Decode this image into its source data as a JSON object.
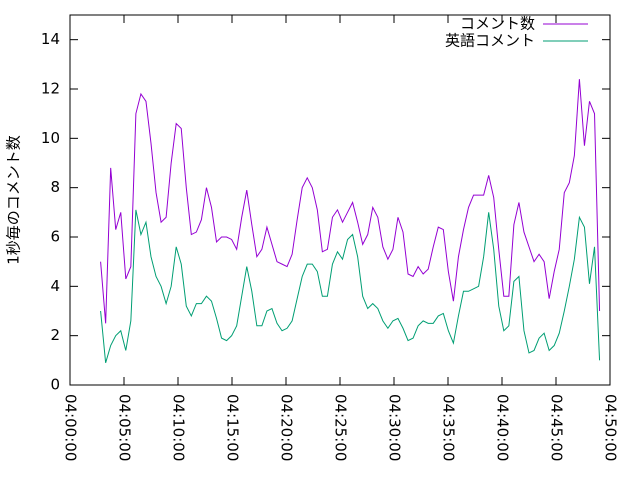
{
  "chart_data": {
    "type": "line",
    "ylabel": "1秒毎のコメント数",
    "x": [
      "04:02:50",
      "04:03:18",
      "04:03:46",
      "04:04:14",
      "04:04:42",
      "04:05:10",
      "04:05:38",
      "04:06:06",
      "04:06:34",
      "04:07:02",
      "04:07:30",
      "04:07:58",
      "04:08:26",
      "04:08:54",
      "04:09:22",
      "04:09:50",
      "04:10:18",
      "04:10:46",
      "04:11:14",
      "04:11:42",
      "04:12:10",
      "04:12:38",
      "04:13:06",
      "04:13:34",
      "04:14:02",
      "04:14:30",
      "04:14:58",
      "04:15:26",
      "04:15:54",
      "04:16:22",
      "04:16:50",
      "04:17:18",
      "04:17:46",
      "04:18:14",
      "04:18:42",
      "04:19:10",
      "04:19:38",
      "04:20:06",
      "04:20:34",
      "04:21:02",
      "04:21:30",
      "04:21:58",
      "04:22:26",
      "04:22:54",
      "04:23:22",
      "04:23:50",
      "04:24:18",
      "04:24:46",
      "04:25:14",
      "04:25:42",
      "04:26:10",
      "04:26:38",
      "04:27:06",
      "04:27:34",
      "04:28:02",
      "04:28:30",
      "04:28:58",
      "04:29:26",
      "04:29:54",
      "04:30:22",
      "04:30:50",
      "04:31:18",
      "04:31:46",
      "04:32:14",
      "04:32:42",
      "04:33:10",
      "04:33:38",
      "04:34:06",
      "04:34:34",
      "04:35:02",
      "04:35:30",
      "04:35:58",
      "04:36:26",
      "04:36:54",
      "04:37:22",
      "04:37:50",
      "04:38:18",
      "04:38:46",
      "04:39:14",
      "04:39:42",
      "04:40:10",
      "04:40:38",
      "04:41:06",
      "04:41:34",
      "04:42:02",
      "04:42:30",
      "04:42:58",
      "04:43:26",
      "04:43:54",
      "04:44:22",
      "04:44:50",
      "04:45:18",
      "04:45:46",
      "04:46:14",
      "04:46:42",
      "04:47:10",
      "04:47:38",
      "04:48:06",
      "04:48:34",
      "04:49:02"
    ],
    "series": [
      {
        "name": "コメント数",
        "color": "#9400d3",
        "values": [
          5.0,
          2.5,
          8.8,
          6.3,
          7.0,
          4.3,
          4.8,
          11.0,
          11.8,
          11.5,
          9.8,
          7.8,
          6.6,
          6.8,
          9.0,
          10.6,
          10.4,
          8.0,
          6.1,
          6.2,
          6.7,
          8.0,
          7.2,
          5.8,
          6.0,
          6.0,
          5.9,
          5.5,
          6.8,
          7.9,
          6.5,
          5.2,
          5.5,
          6.4,
          5.7,
          5.0,
          4.9,
          4.8,
          5.3,
          6.7,
          8.0,
          8.4,
          8.0,
          7.1,
          5.4,
          5.5,
          6.8,
          7.1,
          6.6,
          7.0,
          7.4,
          6.6,
          5.7,
          6.1,
          7.2,
          6.8,
          5.6,
          5.1,
          5.5,
          6.8,
          6.2,
          4.5,
          4.4,
          4.8,
          4.5,
          4.7,
          5.6,
          6.4,
          6.3,
          4.6,
          3.4,
          5.2,
          6.3,
          7.2,
          7.7,
          7.7,
          7.7,
          8.5,
          7.6,
          5.5,
          3.6,
          3.6,
          6.5,
          7.4,
          6.2,
          5.6,
          5.0,
          5.3,
          5.0,
          3.5,
          4.6,
          5.5,
          7.8,
          8.2,
          9.3,
          12.4,
          9.7,
          11.5,
          11.0,
          3.0
        ]
      },
      {
        "name": "英語コメント",
        "color": "#009e73",
        "values": [
          3.0,
          0.9,
          1.6,
          2.0,
          2.2,
          1.4,
          2.6,
          7.1,
          6.1,
          6.6,
          5.2,
          4.4,
          4.0,
          3.3,
          4.0,
          5.6,
          4.9,
          3.2,
          2.8,
          3.3,
          3.3,
          3.6,
          3.4,
          2.7,
          1.9,
          1.8,
          2.0,
          2.4,
          3.6,
          4.8,
          3.8,
          2.4,
          2.4,
          3.0,
          3.1,
          2.5,
          2.2,
          2.3,
          2.6,
          3.5,
          4.4,
          4.9,
          4.9,
          4.6,
          3.6,
          3.6,
          4.9,
          5.4,
          5.1,
          5.9,
          6.1,
          5.2,
          3.6,
          3.1,
          3.3,
          3.1,
          2.6,
          2.3,
          2.6,
          2.7,
          2.3,
          1.8,
          1.9,
          2.4,
          2.6,
          2.5,
          2.5,
          2.8,
          2.9,
          2.2,
          1.7,
          2.8,
          3.8,
          3.8,
          3.9,
          4.0,
          5.2,
          7.0,
          5.5,
          3.2,
          2.2,
          2.4,
          4.2,
          4.4,
          2.2,
          1.3,
          1.4,
          1.9,
          2.1,
          1.4,
          1.6,
          2.1,
          3.0,
          4.0,
          5.1,
          6.8,
          6.4,
          4.1,
          5.6,
          1.0
        ]
      }
    ],
    "xlim": [
      "04:00:00",
      "04:50:00"
    ],
    "xticks": [
      "04:00:00",
      "04:05:00",
      "04:10:00",
      "04:15:00",
      "04:20:00",
      "04:25:00",
      "04:30:00",
      "04:35:00",
      "04:40:00",
      "04:45:00",
      "04:50:00"
    ],
    "ylim": [
      0,
      15
    ],
    "yticks": [
      0,
      2,
      4,
      6,
      8,
      10,
      12,
      14
    ],
    "legend": "top-right"
  }
}
